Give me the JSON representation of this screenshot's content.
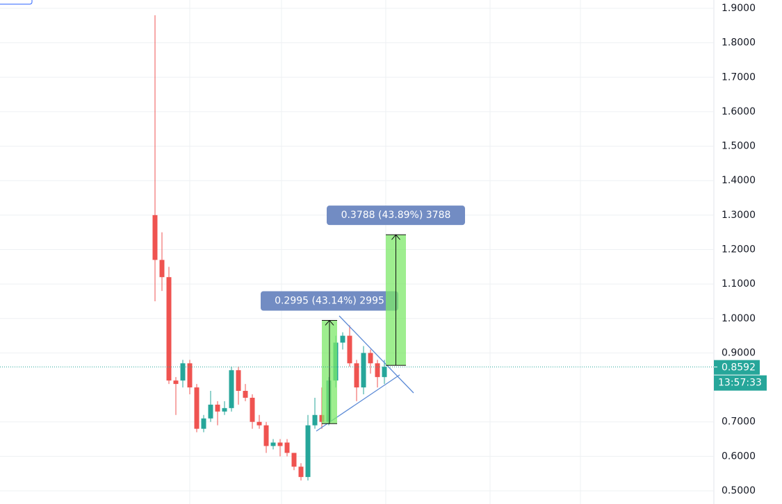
{
  "chart_data": {
    "type": "candlestick",
    "ylim": [
      0.4617,
      1.9242
    ],
    "yticks": [
      {
        "value": 1.9,
        "label": "1.9000"
      },
      {
        "value": 1.8,
        "label": "1.8000"
      },
      {
        "value": 1.7,
        "label": "1.7000"
      },
      {
        "value": 1.6,
        "label": "1.6000"
      },
      {
        "value": 1.5,
        "label": "1.5000"
      },
      {
        "value": 1.4,
        "label": "1.4000"
      },
      {
        "value": 1.3,
        "label": "1.3000"
      },
      {
        "value": 1.2,
        "label": "1.2000"
      },
      {
        "value": 1.1,
        "label": "1.1000"
      },
      {
        "value": 1.0,
        "label": "1.0000"
      },
      {
        "value": 0.9,
        "label": "0.9000"
      },
      {
        "value": 0.7,
        "label": "0.7000"
      },
      {
        "value": 0.6,
        "label": "0.6000"
      },
      {
        "value": 0.5,
        "label": "0.5000"
      }
    ],
    "grid": true,
    "up_color": "#26a69a",
    "down_color": "#ef5350",
    "open": [
      1.3,
      1.17,
      1.12,
      0.82,
      0.82,
      0.87,
      0.8,
      0.68,
      0.71,
      0.75,
      0.73,
      0.74,
      0.85,
      0.79,
      0.77,
      0.7,
      0.69,
      0.63,
      0.64,
      0.64,
      0.61,
      0.57,
      0.54,
      0.69,
      0.72,
      0.7,
      0.82,
      0.93,
      0.95,
      0.87,
      0.8,
      0.9,
      0.87,
      0.83
    ],
    "high": [
      1.88,
      1.25,
      1.15,
      0.83,
      0.88,
      0.88,
      0.81,
      0.72,
      0.79,
      0.76,
      0.76,
      0.86,
      0.86,
      0.81,
      0.78,
      0.72,
      0.7,
      0.65,
      0.65,
      0.65,
      0.61,
      0.58,
      0.72,
      0.77,
      0.8,
      0.83,
      0.95,
      0.96,
      0.98,
      0.88,
      0.92,
      0.91,
      0.88,
      0.88
    ],
    "low": [
      1.05,
      1.08,
      0.81,
      0.72,
      0.8,
      0.78,
      0.67,
      0.67,
      0.7,
      0.69,
      0.72,
      0.73,
      0.75,
      0.76,
      0.68,
      0.68,
      0.61,
      0.62,
      0.6,
      0.6,
      0.56,
      0.53,
      0.53,
      0.68,
      0.68,
      0.69,
      0.8,
      0.91,
      0.86,
      0.76,
      0.78,
      0.84,
      0.8,
      0.81
    ],
    "close": [
      1.17,
      1.12,
      0.82,
      0.81,
      0.87,
      0.8,
      0.68,
      0.71,
      0.75,
      0.73,
      0.74,
      0.85,
      0.79,
      0.77,
      0.7,
      0.69,
      0.63,
      0.64,
      0.63,
      0.61,
      0.57,
      0.54,
      0.69,
      0.72,
      0.7,
      0.82,
      0.93,
      0.95,
      0.87,
      0.8,
      0.9,
      0.87,
      0.83,
      0.86
    ],
    "measurements": [
      {
        "label": "0.2995 (43.14%) 2995",
        "start": 0.695,
        "end": 0.9945
      },
      {
        "label": "0.3788 (43.89%) 3788",
        "start": 0.8642,
        "end": 1.243
      }
    ],
    "last_price": 0.8592,
    "countdown": "13:57:33"
  }
}
